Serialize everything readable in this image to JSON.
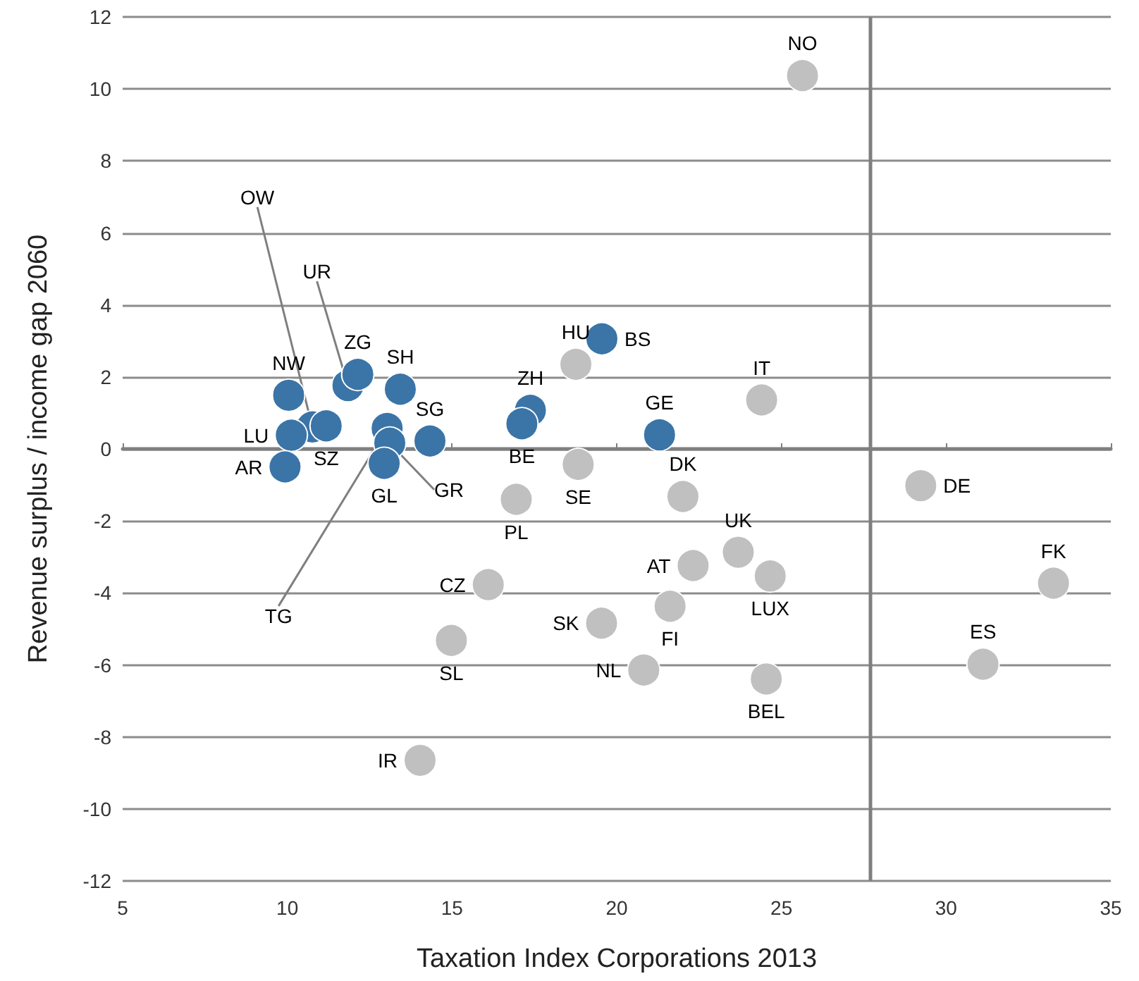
{
  "chart_data": {
    "type": "scatter",
    "xlabel": "Taxation Index Corporations 2013",
    "ylabel": "Revenue surplus / income gap 2060",
    "xlim": [
      5,
      35
    ],
    "xticks": [
      5,
      10,
      15,
      20,
      25,
      30,
      35
    ],
    "ylim": [
      -12,
      12
    ],
    "yticks": [
      -12,
      -10,
      -8,
      -6,
      -4,
      -2,
      0,
      2,
      4,
      6,
      8,
      10,
      12
    ],
    "grid": "y",
    "marker": "circle",
    "ref_lines": [
      {
        "axis": "x",
        "value": 27.7,
        "color": "#7f7f7f"
      }
    ],
    "series": [
      {
        "color": "#3b74a7",
        "x": [
          10.04,
          11.84,
          12.14,
          10.76,
          11.18,
          13.43,
          10.12,
          9.93,
          13.03,
          13.11,
          12.94,
          14.33,
          19.55,
          17.38,
          17.12,
          21.3
        ],
        "values": [
          1.49,
          1.76,
          2.07,
          0.61,
          0.64,
          1.66,
          0.38,
          -0.5,
          0.57,
          0.16,
          -0.4,
          0.22,
          3.06,
          1.07,
          0.7,
          0.39
        ],
        "value_labels": [
          "NW",
          "UR",
          "ZG",
          "OW",
          "SZ",
          "SH",
          "LU",
          "AR",
          "TG",
          "GR",
          "GL",
          "SG",
          "BS",
          "ZH",
          "BE",
          "GE"
        ]
      },
      {
        "color": "#c0c0c0",
        "x": [
          25.64,
          18.76,
          24.4,
          18.83,
          16.95,
          22.01,
          22.32,
          23.69,
          24.66,
          21.62,
          19.54,
          16.1,
          14.98,
          20.82,
          24.54,
          14.03,
          29.23,
          33.26,
          31.12
        ],
        "values": [
          10.37,
          2.35,
          1.36,
          -0.43,
          -1.4,
          -1.32,
          -3.24,
          -2.87,
          -3.53,
          -4.37,
          -4.84,
          -3.77,
          -5.32,
          -6.14,
          -6.39,
          -8.65,
          -1.02,
          -3.73,
          -5.98
        ],
        "value_labels": [
          "NO",
          "HU",
          "IT",
          "SE",
          "PL",
          "DK",
          "AT",
          "UK",
          "LUX",
          "FI",
          "SK",
          "CZ",
          "SL",
          "NL",
          "BEL",
          "IR",
          "DE",
          "FK",
          "ES"
        ]
      }
    ]
  }
}
